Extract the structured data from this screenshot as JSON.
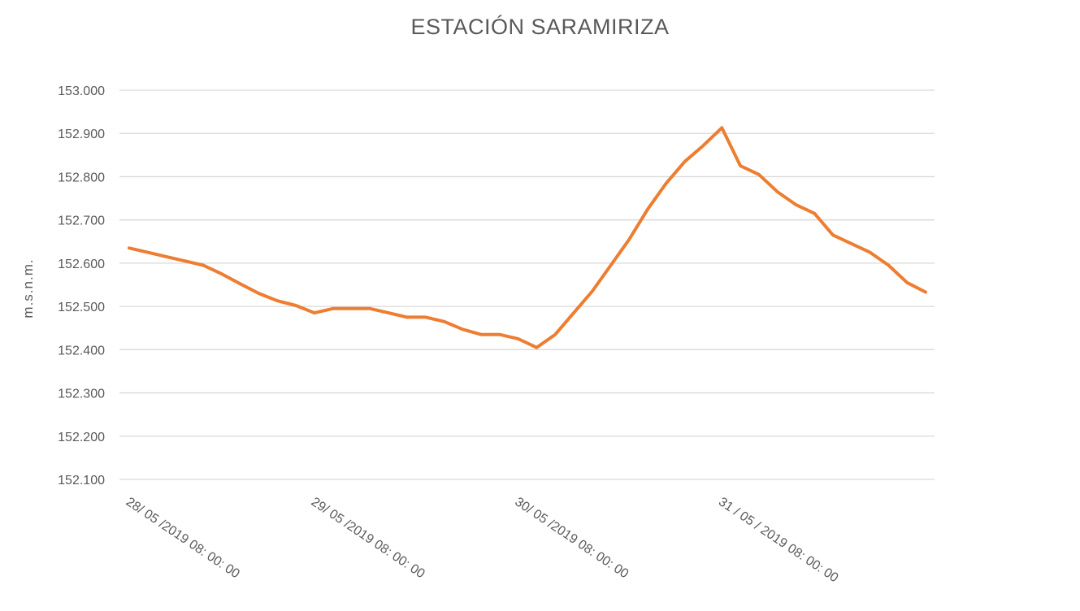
{
  "chart_data": {
    "type": "line",
    "title": "ESTACIÓN SARAMIRIZA",
    "xlabel": "",
    "ylabel": "m.s.n.m.",
    "ylim": [
      152.1,
      153.0
    ],
    "yticks": [
      "152.100",
      "152.200",
      "152.300",
      "152.400",
      "152.500",
      "152.600",
      "152.700",
      "152.800",
      "152.900",
      "153.000"
    ],
    "x_tick_labels": [
      "28/ 05 /2019 08: 00: 00",
      "29/ 05 /2019 08: 00: 00",
      "30/ 05 /2019 08: 00: 00",
      "31 / 05 / 2019 08: 00: 00"
    ],
    "x_tick_indices": [
      0,
      10,
      21,
      32
    ],
    "grid": true,
    "color": "#ED7D31",
    "series": [
      {
        "values": [
          152.635,
          152.625,
          152.615,
          152.605,
          152.595,
          152.575,
          152.552,
          152.53,
          152.513,
          152.502,
          152.485,
          152.495,
          152.495,
          152.495,
          152.485,
          152.475,
          152.475,
          152.465,
          152.447,
          152.435,
          152.435,
          152.425,
          152.405,
          152.435,
          152.485,
          152.535,
          152.595,
          152.655,
          152.725,
          152.785,
          152.835,
          152.872,
          152.913,
          152.825,
          152.805,
          152.765,
          152.735,
          152.715,
          152.665,
          152.645,
          152.625,
          152.595,
          152.555,
          152.533
        ]
      }
    ]
  }
}
